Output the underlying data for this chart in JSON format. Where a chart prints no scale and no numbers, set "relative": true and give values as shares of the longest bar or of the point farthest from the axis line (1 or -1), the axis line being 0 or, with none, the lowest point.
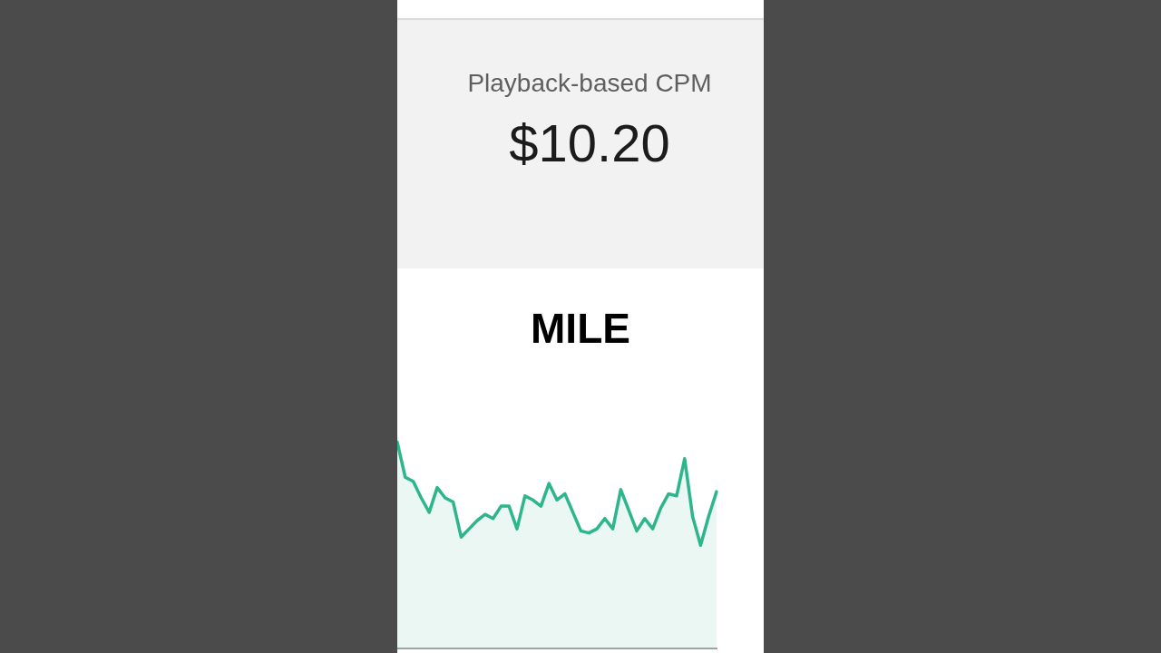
{
  "chart_data": {
    "type": "area",
    "title": "Playback-based CPM",
    "subtitle": "$10.20",
    "annotations": [
      "MILE"
    ],
    "categories": [
      null,
      null,
      null,
      null,
      null,
      null,
      null,
      null,
      null,
      null,
      null,
      null,
      null,
      null,
      null,
      null,
      null,
      null,
      null,
      null,
      null,
      null,
      null,
      null,
      null,
      null,
      null,
      null,
      null,
      null,
      null,
      null,
      null,
      null,
      null,
      null,
      null,
      null,
      null,
      null,
      null
    ],
    "values": [
      1.0,
      0.83,
      0.81,
      0.73,
      0.66,
      0.78,
      0.73,
      0.71,
      0.54,
      0.58,
      0.62,
      0.65,
      0.63,
      0.69,
      0.69,
      0.58,
      0.74,
      0.72,
      0.69,
      0.8,
      0.72,
      0.75,
      0.66,
      0.57,
      0.56,
      0.58,
      0.63,
      0.58,
      0.77,
      0.67,
      0.57,
      0.63,
      0.58,
      0.68,
      0.75,
      0.74,
      0.92,
      0.64,
      0.5,
      0.64,
      0.76
    ],
    "color": "#2db58c",
    "relative": true
  }
}
